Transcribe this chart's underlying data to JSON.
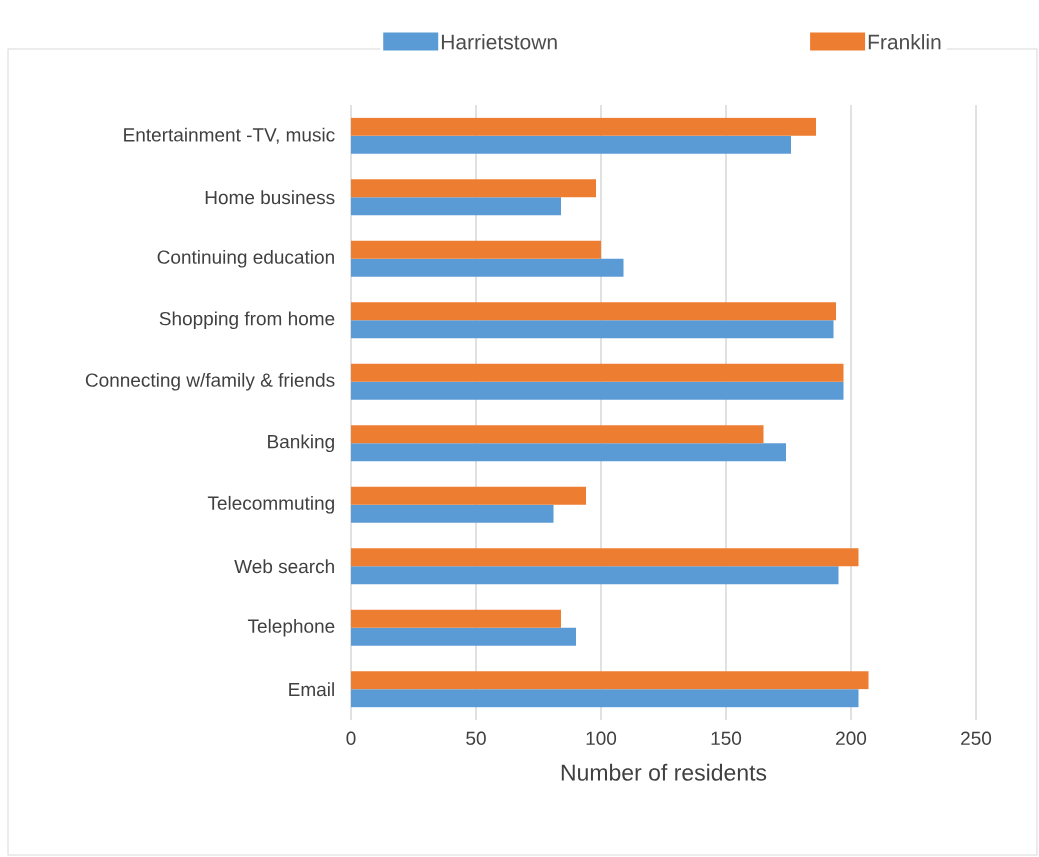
{
  "chart_data": {
    "type": "bar",
    "orientation": "horizontal",
    "categories": [
      "Entertainment -TV, music",
      "Home business",
      "Continuing education",
      "Shopping from home",
      "Connecting w/family & friends",
      "Banking",
      "Telecommuting",
      "Web search",
      "Telephone",
      "Email"
    ],
    "series": [
      {
        "name": "Harrietstown",
        "color": "#5b9bd5",
        "values": [
          176,
          84,
          109,
          193,
          197,
          174,
          81,
          195,
          90,
          203
        ]
      },
      {
        "name": "Franklin",
        "color": "#ed7d31",
        "values": [
          186,
          98,
          100,
          194,
          197,
          165,
          94,
          203,
          84,
          207
        ]
      }
    ],
    "xlabel": "Number of residents",
    "xlim": [
      0,
      250
    ],
    "xticks": [
      0,
      50,
      100,
      150,
      200,
      250
    ],
    "grid": "x",
    "legend": "top"
  }
}
